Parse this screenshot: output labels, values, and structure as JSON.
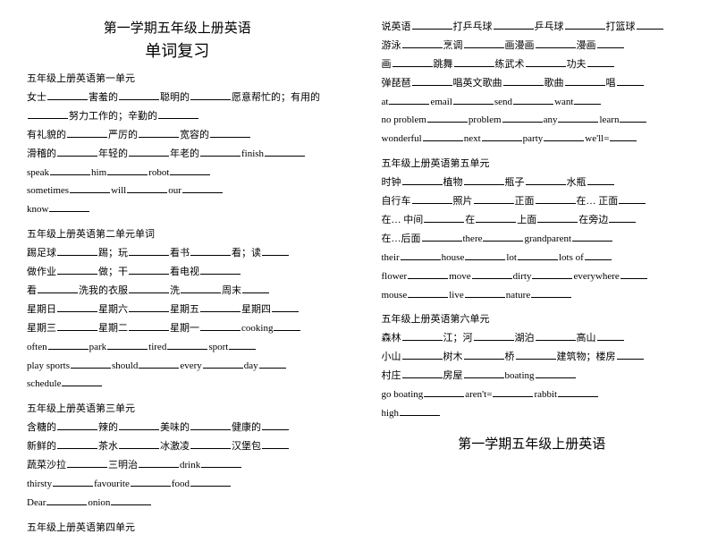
{
  "title_main": "第一学期五年级上册英语",
  "title_sub": "单词复习",
  "footer_title": "第一学期五年级上册英语",
  "unit1": {
    "heading": "五年级上册英语第一单元",
    "l1a": "女士",
    "l1b": "害羞的",
    "l1c": "聪明的",
    "l1d": "愿意帮忙的；有用的",
    "l2a": "努力工作的；辛勤的",
    "l3a": "有礼貌的",
    "l3b": "严厉的",
    "l3c": "宽容的",
    "l4a": "滑稽的",
    "l4b": "年轻的",
    "l4c": "年老的",
    "l4d": "finish",
    "l5a": "speak",
    "l5b": "him",
    "l5c": "robot",
    "l6a": "sometimes",
    "l6b": "will",
    "l6c": "our",
    "l7a": "know"
  },
  "unit2": {
    "heading": "五年级上册英语第二单元单词",
    "l1a": "踢足球",
    "l1b": "踢；玩",
    "l1c": "看书",
    "l1d": "看；读",
    "l2a": "做作业",
    "l2b": "做；干",
    "l2c": "看电视",
    "l3a": "看",
    "l3b": "洗我的衣服",
    "l3c": "洗",
    "l3d": "周末",
    "l4a": "星期日",
    "l4b": "星期六",
    "l4c": "星期五",
    "l4d": "星期四",
    "l5a": "星期三",
    "l5b": "星期二",
    "l5c": "星期一",
    "l5d": "cooking",
    "l6a": "often",
    "l6b": "park",
    "l6c": "tired",
    "l6d": "sport",
    "l7a": "play sports",
    "l7b": "should",
    "l7c": "every",
    "l7d": "day",
    "l8a": "schedule"
  },
  "unit3": {
    "heading": "五年级上册英语第三单元",
    "l1a": "含糖的",
    "l1b": "辣的",
    "l1c": "美味的",
    "l1d": "健康的",
    "l2a": "新鲜的",
    "l2b": "茶水",
    "l2c": "冰激凌",
    "l2d": "汉堡包",
    "l3a": "蔬菜沙拉",
    "l3b": "三明治",
    "l3c": "drink",
    "l4a": "thirsty",
    "l4b": "favourite",
    "l4c": "food",
    "l5a": "Dear",
    "l5b": "onion"
  },
  "unit4": {
    "heading": "五年级上册英语第四单元",
    "l1a": "说英语",
    "l1b": "打乒乓球",
    "l1c": "乒乓球",
    "l1d": "打篮球",
    "l2a": "游泳",
    "l2b": "烹调",
    "l2c": "画漫画",
    "l2d": "漫画",
    "l3a": "画",
    "l3b": "跳舞",
    "l3c": "练武术",
    "l3d": "功夫",
    "l4a": "弹琵琶",
    "l4b": "唱英文歌曲",
    "l4c": "歌曲",
    "l4d": "唱",
    "l5a": "at",
    "l5b": "email",
    "l5c": "send",
    "l5d": "want",
    "l6a": "no problem",
    "l6b": "problem",
    "l6c": "any",
    "l6d": "learn",
    "l7a": "wonderful",
    "l7b": "next",
    "l7c": "party",
    "l7d": "we'll"
  },
  "unit5": {
    "heading": "五年级上册英语第五单元",
    "l1a": "时钟",
    "l1b": "植物",
    "l1c": "瓶子",
    "l1d": "水瓶",
    "l2a": "自行车",
    "l2b": "照片",
    "l2c": "正面",
    "l2d": "在… 正面",
    "l3a": "在… 中间",
    "l3b": "在",
    "l3c": "上面",
    "l3d": "在旁边",
    "l4a": "在…后面",
    "l4b": "there",
    "l4c": "grandparent",
    "l5a": "their",
    "l5b": "house",
    "l5c": "lot",
    "l5d": "lots of",
    "l6a": "flower",
    "l6b": "move",
    "l6c": "dirty",
    "l6d": "everywhere",
    "l7a": "mouse",
    "l7b": "live",
    "l7c": "nature"
  },
  "unit6": {
    "heading": "五年级上册英语第六单元",
    "l1a": "森林",
    "l1b": "江；河",
    "l1c": "湖泊",
    "l1d": "高山",
    "l2a": "小山",
    "l2b": "树木",
    "l2c": "桥",
    "l2d": "建筑物；楼房",
    "l3a": "村庄",
    "l3b": "房屋",
    "l3c": "boating",
    "l4a": "go boating",
    "l4b": "aren't",
    "l4c": "rabbit",
    "l5a": "high"
  }
}
